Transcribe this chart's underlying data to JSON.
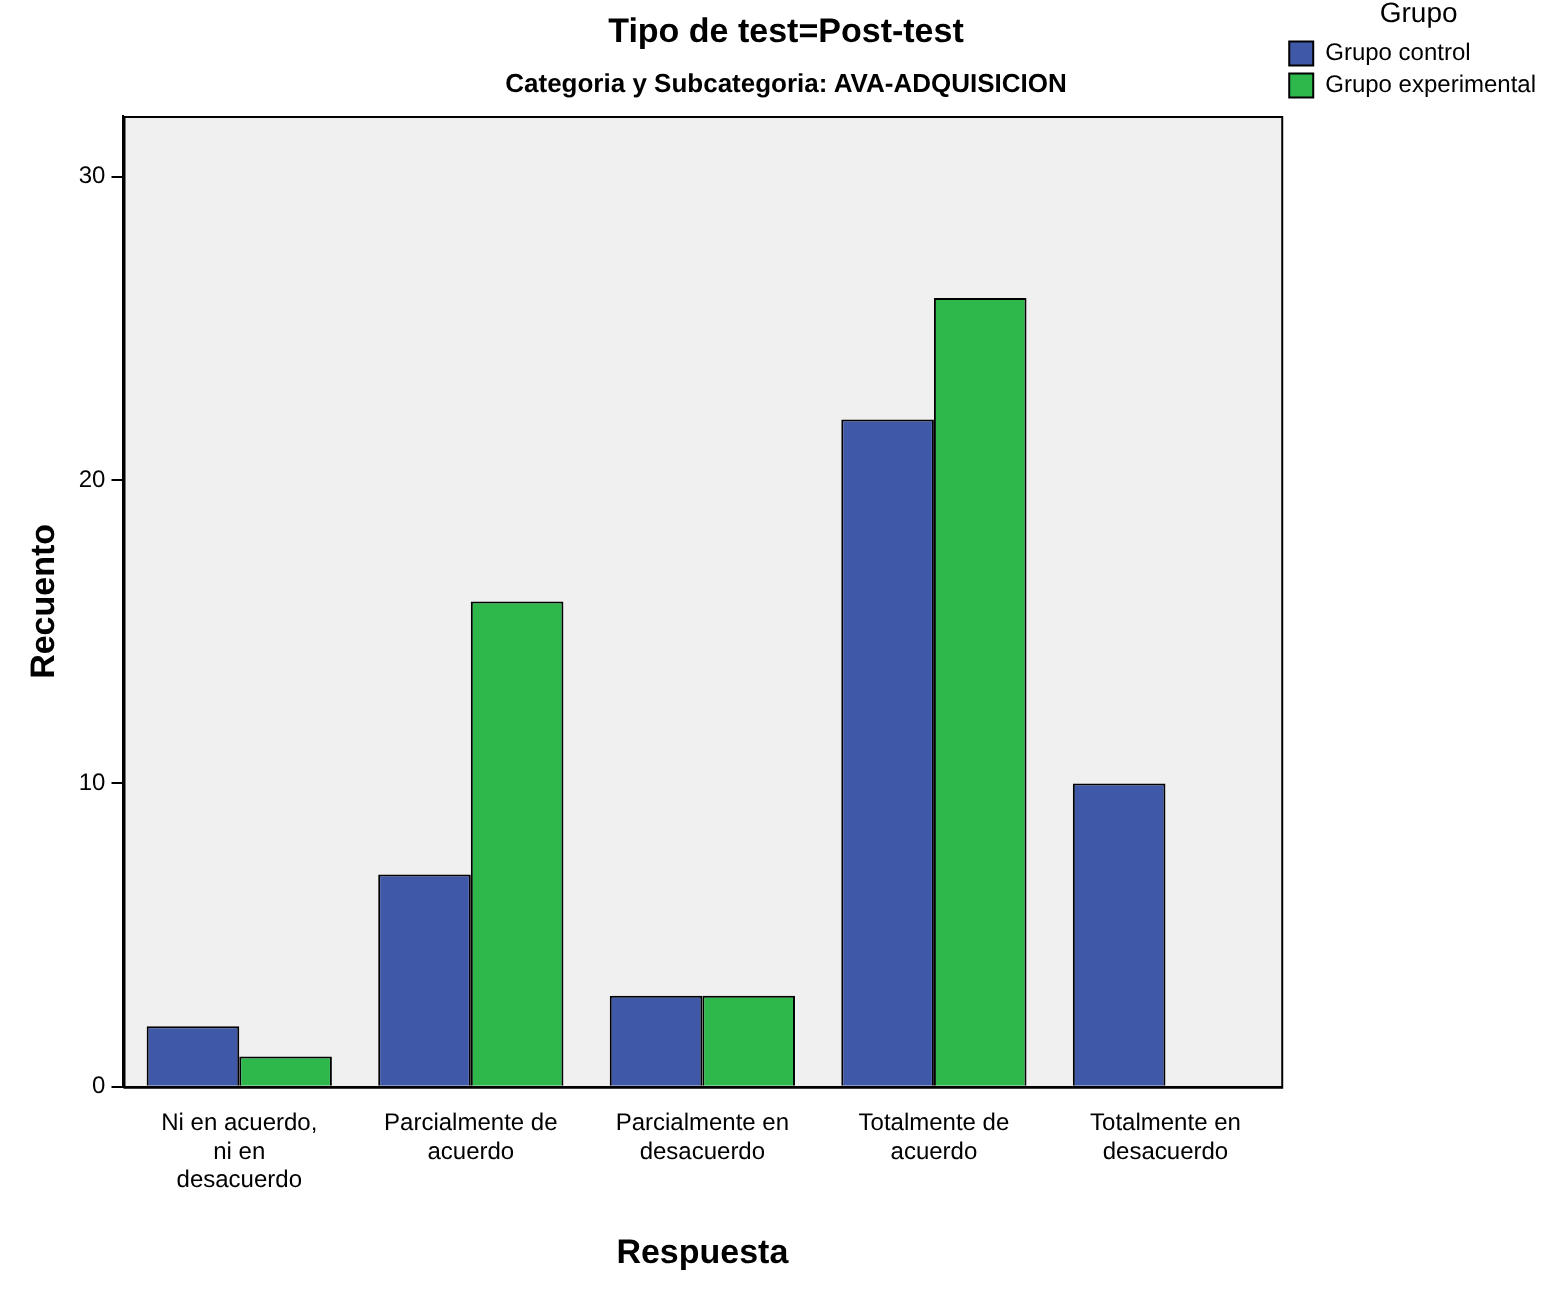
{
  "chart_data": {
    "type": "bar",
    "title": "Tipo de test=Post-test",
    "subtitle": "Categoria y Subcategoria: AVA-ADQUISICION",
    "xlabel": "Respuesta",
    "ylabel": "Recuento",
    "legend_title": "Grupo",
    "categories": [
      "Ni en acuerdo, ni en desacuerdo",
      "Parcialmente de acuerdo",
      "Parcialmente en desacuerdo",
      "Totalmente de acuerdo",
      "Totalmente en desacuerdo"
    ],
    "series": [
      {
        "name": "Grupo control",
        "color": "#3f58a8",
        "values": [
          2,
          7,
          3,
          22,
          10
        ]
      },
      {
        "name": "Grupo experimental",
        "color": "#2eb84b",
        "values": [
          1,
          16,
          3,
          26,
          0
        ]
      }
    ],
    "ylim": [
      0,
      32
    ],
    "yticks": [
      0,
      10,
      20,
      30
    ],
    "grid": false,
    "legend": "top right"
  }
}
